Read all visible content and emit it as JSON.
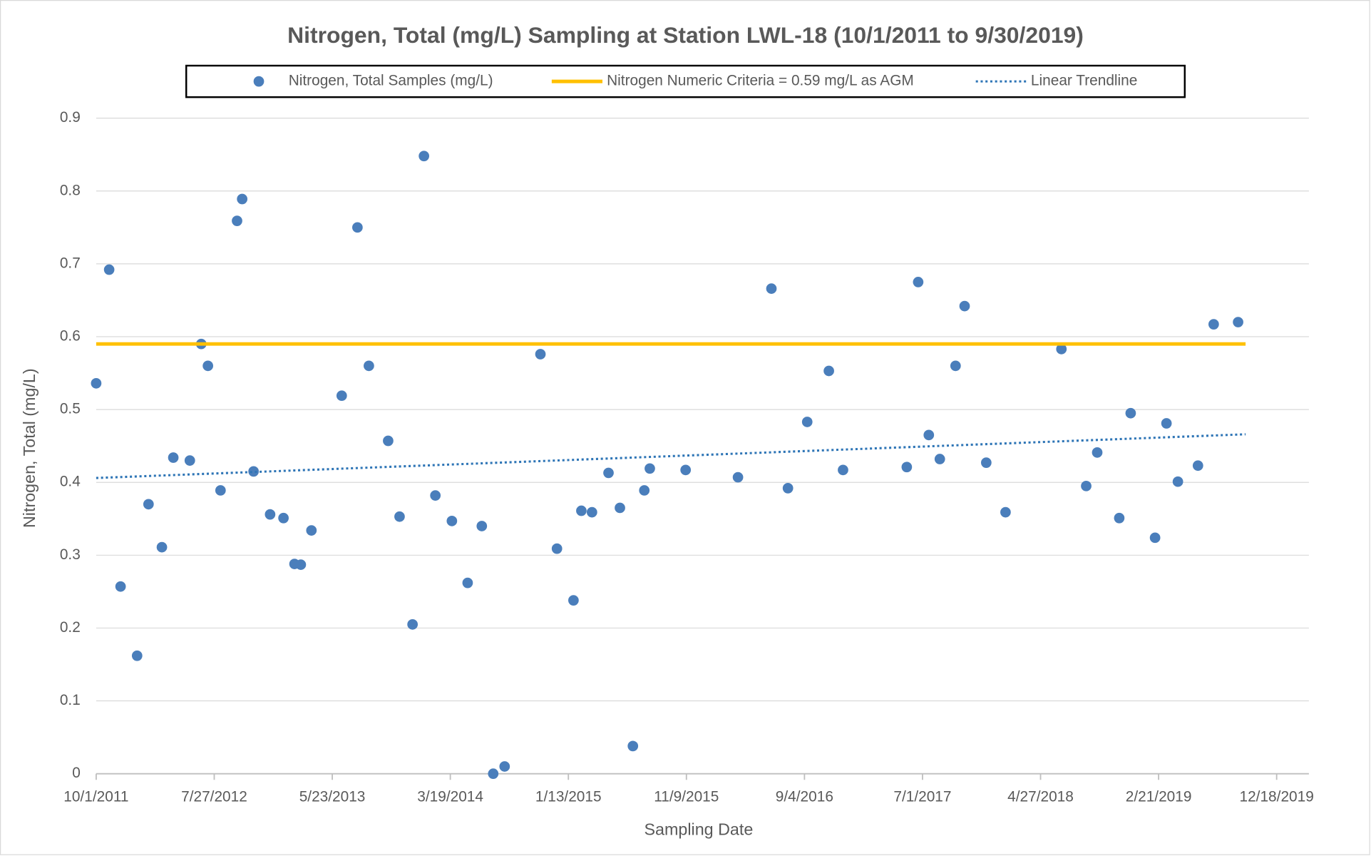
{
  "chart_data": {
    "type": "scatter",
    "title": "Nitrogen, Total (mg/L) Sampling at Station LWL-18 (10/1/2011 to 9/30/2019)",
    "x_label": "Sampling Date",
    "y_label": "Nitrogen, Total (mg/L)",
    "xlim": [
      "10/1/2011",
      "3/9/2020"
    ],
    "xticks": [
      "10/1/2011",
      "7/27/2012",
      "5/23/2013",
      "3/19/2014",
      "1/13/2015",
      "11/9/2015",
      "9/4/2016",
      "7/1/2017",
      "4/27/2018",
      "2/21/2019",
      "12/18/2019"
    ],
    "ylim": [
      0,
      0.9
    ],
    "yticks": [
      0,
      0.1,
      0.2,
      0.3,
      0.4,
      0.5,
      0.6,
      0.7,
      0.8,
      0.9
    ],
    "grid": true,
    "legend": "top",
    "series": [
      {
        "name": "Nitrogen, Total Samples (mg/L)",
        "type": "scatter",
        "color": "#4a7ebb",
        "x": [
          "10/1/2011",
          "11/3/2011",
          "12/2/2011",
          "1/13/2012",
          "2/11/2012",
          "3/16/2012",
          "4/14/2012",
          "5/26/2012",
          "6/24/2012",
          "7/11/2012",
          "8/12/2012",
          "9/23/2012",
          "10/6/2012",
          "11/4/2012",
          "12/16/2012",
          "1/19/2013",
          "2/16/2013",
          "3/4/2013",
          "3/31/2013",
          "6/16/2013",
          "7/26/2013",
          "8/24/2013",
          "10/12/2013",
          "11/10/2013",
          "12/13/2013",
          "1/11/2014",
          "2/9/2014",
          "3/23/2014",
          "5/2/2014",
          "6/7/2014",
          "7/6/2014",
          "8/4/2014",
          "11/3/2014",
          "12/15/2014",
          "1/26/2015",
          "2/15/2015",
          "3/14/2015",
          "4/25/2015",
          "5/24/2015",
          "6/26/2015",
          "7/25/2015",
          "8/8/2015",
          "11/7/2015",
          "3/19/2016",
          "6/12/2016",
          "7/24/2016",
          "9/11/2016",
          "11/5/2016",
          "12/11/2016",
          "5/22/2017",
          "6/20/2017",
          "7/17/2017",
          "8/14/2017",
          "9/23/2017",
          "10/16/2017",
          "12/10/2017",
          "1/28/2018",
          "6/19/2018",
          "8/21/2018",
          "9/18/2018",
          "11/13/2018",
          "12/12/2018",
          "2/12/2019",
          "3/13/2019",
          "4/11/2019",
          "6/1/2019",
          "7/11/2019",
          "9/11/2019"
        ],
        "values": [
          0.536,
          0.692,
          0.257,
          0.162,
          0.37,
          0.311,
          0.434,
          0.43,
          0.59,
          0.56,
          0.389,
          0.759,
          0.789,
          0.415,
          0.356,
          0.351,
          0.288,
          0.287,
          0.334,
          0.519,
          0.75,
          0.56,
          0.457,
          0.353,
          0.205,
          0.848,
          0.382,
          0.347,
          0.262,
          0.34,
          0.0,
          0.01,
          0.576,
          0.309,
          0.238,
          0.361,
          0.359,
          0.413,
          0.365,
          0.038,
          0.389,
          0.419,
          0.417,
          0.407,
          0.666,
          0.392,
          0.483,
          0.553,
          0.417,
          0.421,
          0.675,
          0.465,
          0.432,
          0.56,
          0.642,
          0.427,
          0.359,
          0.583,
          0.395,
          0.441,
          0.351,
          0.495,
          0.324,
          0.481,
          0.401,
          0.423,
          0.617,
          0.62
        ]
      },
      {
        "name": "Nitrogen Numeric Criteria = 0.59 mg/L as AGM",
        "type": "line",
        "line_style": "solid",
        "color": "#ffc000",
        "x": [
          "10/1/2011",
          "9/30/2019"
        ],
        "values": [
          0.59,
          0.59
        ]
      },
      {
        "name": "Linear Trendline",
        "type": "line",
        "line_style": "dotted",
        "color": "#2e75b6",
        "x": [
          "10/1/2011",
          "9/30/2019"
        ],
        "values": [
          0.406,
          0.466
        ]
      }
    ]
  }
}
